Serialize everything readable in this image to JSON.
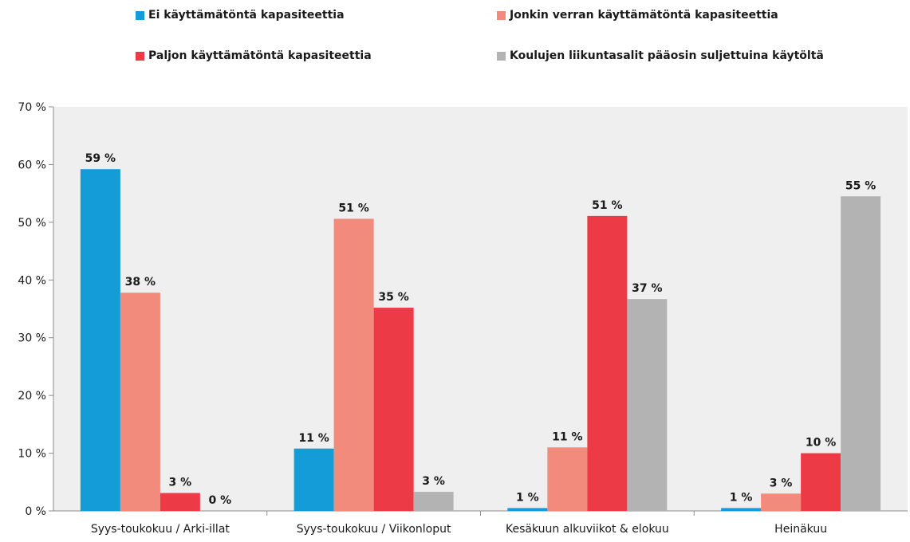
{
  "chart_data": {
    "type": "bar",
    "title": "",
    "xlabel": "",
    "ylabel": "",
    "ylim": [
      0,
      70
    ],
    "yticks": [
      0,
      10,
      20,
      30,
      40,
      50,
      60,
      70
    ],
    "ytick_labels": [
      "0 %",
      "10 %",
      "20 %",
      "30 %",
      "40 %",
      "50 %",
      "60 %",
      "70 %"
    ],
    "grid": false,
    "legend_position": "top",
    "plot_background": "#efefef",
    "categories": [
      "Syys-toukokuu / Arki-illat",
      "Syys-toukokuu / Viikonloput",
      "Kesäkuun alkuviikot & elokuu",
      "Heinäkuu"
    ],
    "series": [
      {
        "name": "Ei käyttämätöntä kapasiteettia",
        "color": "#149cd8",
        "values": [
          59.2,
          10.8,
          0.5,
          0.5
        ],
        "labels": [
          "59 %",
          "11 %",
          "1 %",
          "1 %"
        ]
      },
      {
        "name": "Jonkin verran käyttämätöntä kapasiteettia",
        "color": "#f28b7c",
        "values": [
          37.8,
          50.6,
          11.0,
          3.0
        ],
        "labels": [
          "38 %",
          "51 %",
          "11 %",
          "3 %"
        ]
      },
      {
        "name": "Paljon käyttämätöntä kapasiteettia",
        "color": "#ec3a46",
        "values": [
          3.1,
          35.2,
          51.1,
          10.0
        ],
        "labels": [
          "3 %",
          "35 %",
          "51 %",
          "10 %"
        ]
      },
      {
        "name": "Koulujen liikuntasalit pääosin suljettuina käytöltä",
        "color": "#b3b3b3",
        "values": [
          0,
          3.3,
          36.7,
          54.5
        ],
        "labels": [
          "0 %",
          "3 %",
          "37 %",
          "55 %"
        ]
      }
    ]
  }
}
